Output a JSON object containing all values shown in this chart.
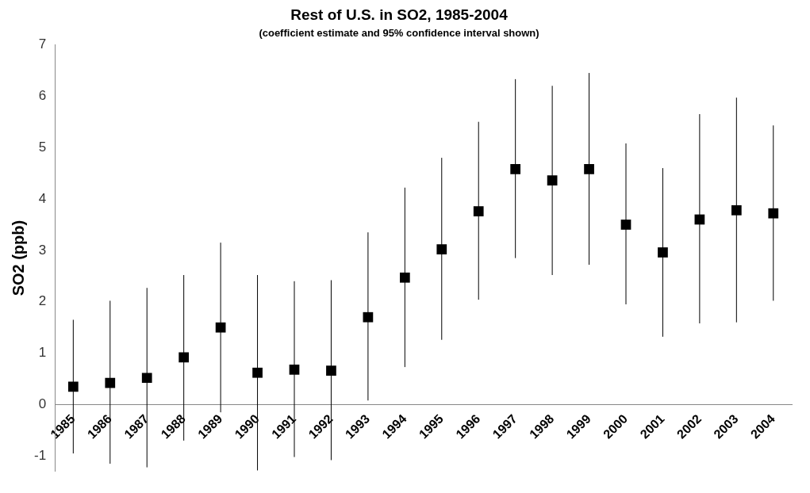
{
  "chart_data": {
    "type": "scatter",
    "title": "Rest of U.S. in SO2, 1985-2004",
    "subtitle": "(coefficient estimate and 95% confidence interval shown)",
    "ylabel": "SO2 (ppb)",
    "categories": [
      "1985",
      "1986",
      "1987",
      "1988",
      "1989",
      "1990",
      "1991",
      "1992",
      "1993",
      "1994",
      "1995",
      "1996",
      "1997",
      "1998",
      "1999",
      "2000",
      "2001",
      "2002",
      "2003",
      "2004"
    ],
    "values": [
      0.35,
      0.42,
      0.52,
      0.92,
      1.5,
      0.62,
      0.68,
      0.66,
      1.7,
      2.47,
      3.02,
      3.76,
      4.58,
      4.36,
      4.58,
      3.5,
      2.96,
      3.6,
      3.78,
      3.72
    ],
    "errors": [
      [
        -0.95,
        1.65
      ],
      [
        -1.15,
        2.02
      ],
      [
        -1.22,
        2.27
      ],
      [
        -0.7,
        2.52
      ],
      [
        -0.15,
        3.15
      ],
      [
        -1.28,
        2.52
      ],
      [
        -1.02,
        2.4
      ],
      [
        -1.08,
        2.42
      ],
      [
        0.08,
        3.35
      ],
      [
        0.73,
        4.22
      ],
      [
        1.26,
        4.8
      ],
      [
        2.04,
        5.5
      ],
      [
        2.85,
        6.33
      ],
      [
        2.52,
        6.2
      ],
      [
        2.72,
        6.45
      ],
      [
        1.95,
        5.08
      ],
      [
        1.32,
        4.6
      ],
      [
        1.58,
        5.65
      ],
      [
        1.6,
        5.97
      ],
      [
        2.02,
        5.43
      ]
    ],
    "color": "#000000",
    "marker": "square",
    "ylim": [
      -1.3,
      7
    ],
    "yticks": [
      -1,
      0,
      1,
      2,
      3,
      4,
      5,
      6,
      7
    ],
    "grid": false,
    "legend": false
  }
}
